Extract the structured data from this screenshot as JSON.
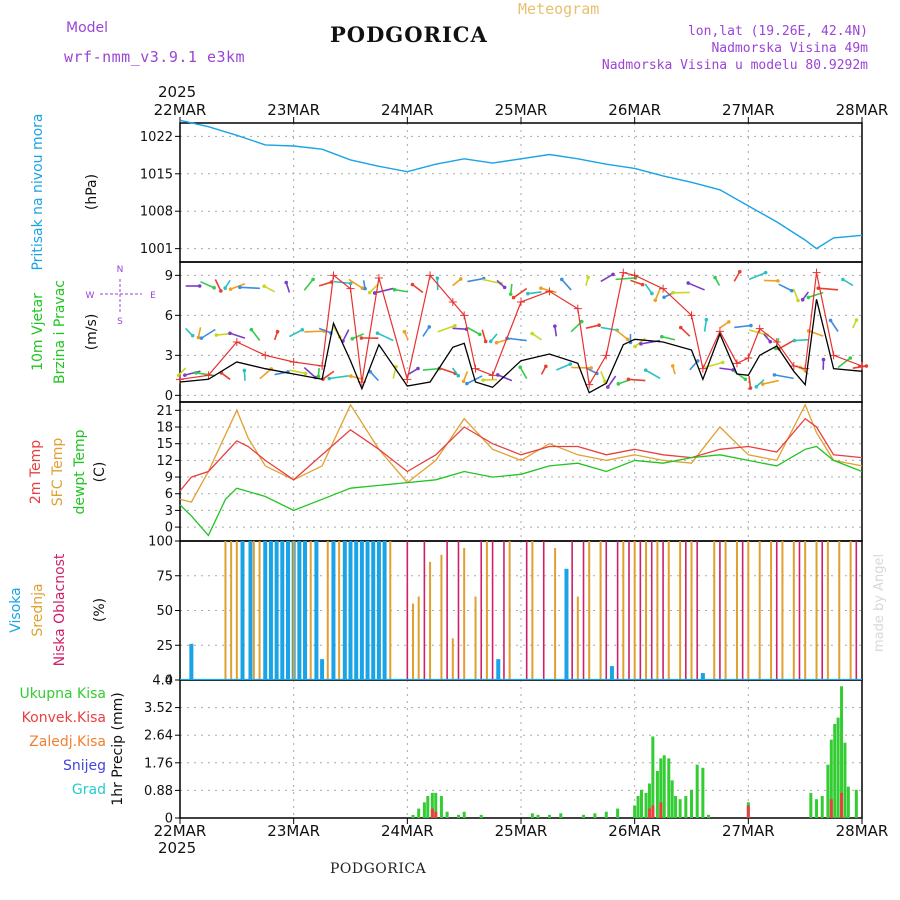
{
  "header": {
    "model_label": "Model",
    "model_name": "wrf-nmm_v3.9.1 e3km",
    "title": "PODGORICA",
    "meteogram_label": "Meteogram",
    "location_line": "lon,lat (19.26E, 42.4N)",
    "elevation_line": "Nadmorska Visina 49m",
    "model_elevation_line": "Nadmorska Visina u modelu 80.9292m",
    "year_top": "2025",
    "year_bottom": "2025",
    "footer_title": "PODGORICA",
    "credit": "made by Angel"
  },
  "colors": {
    "pressure": "#1aa3e6",
    "wind_speed": "#000000",
    "gust": "#e83030",
    "temp2m": "#e84040",
    "sfc_temp": "#e0a030",
    "dewpt": "#22c422",
    "high_cloud": "#1aa3e6",
    "mid_cloud": "#e0a030",
    "low_cloud": "#d0206a",
    "total_precip": "#33cc33",
    "conv_precip": "#e84040",
    "frozen_precip": "#f08030",
    "snow": "#4444dd",
    "hail": "#22cccc",
    "text_purple": "#9b44d6",
    "text_orange": "#e8c070"
  },
  "chart_data": [
    {
      "type": "line",
      "panel": "pressure",
      "title": "Pritisak na nivou mora",
      "ylabel": "(hPa)",
      "x": [
        0,
        0.5,
        1,
        1.5,
        2,
        2.5,
        3,
        3.5,
        4,
        4.5,
        5,
        5.5,
        6
      ],
      "categories": [
        "22MAR",
        "23MAR",
        "24MAR",
        "25MAR",
        "26MAR",
        "27MAR",
        "28MAR"
      ],
      "xlim": [
        0,
        6
      ],
      "ylim": [
        998.5,
        1024.5
      ],
      "yticks": [
        1001,
        1008,
        1015,
        1022
      ],
      "series": [
        {
          "name": "Pritisak",
          "x": [
            0,
            0.25,
            0.5,
            0.75,
            1,
            1.25,
            1.5,
            1.75,
            2,
            2.25,
            2.5,
            2.75,
            3,
            3.25,
            3.5,
            3.75,
            4,
            4.25,
            4.5,
            4.75,
            5,
            5.25,
            5.5,
            5.6,
            5.75,
            6
          ],
          "values": [
            1025,
            1023.8,
            1022.2,
            1020.4,
            1020.2,
            1019.6,
            1017.6,
            1016.4,
            1015.4,
            1016.8,
            1017.8,
            1017,
            1017.8,
            1018.6,
            1017.8,
            1016.8,
            1016,
            1014.6,
            1013.4,
            1012,
            1009,
            1006,
            1002.6,
            1001,
            1003,
            1003.5
          ]
        }
      ]
    },
    {
      "type": "line",
      "panel": "wind",
      "title": "10m Vjetar Brzina i Pravac",
      "ylabel": "(m/s)",
      "compass": [
        "N",
        "S",
        "W",
        "E"
      ],
      "xlim": [
        0,
        6
      ],
      "ylim": [
        -0.5,
        10
      ],
      "yticks": [
        0,
        3,
        6,
        9
      ],
      "series": [
        {
          "name": "Brzina vjetra",
          "x": [
            0,
            0.25,
            0.5,
            0.75,
            1,
            1.25,
            1.35,
            1.5,
            1.6,
            1.75,
            2,
            2.2,
            2.4,
            2.5,
            2.6,
            2.75,
            3,
            3.25,
            3.5,
            3.6,
            3.75,
            3.9,
            4,
            4.25,
            4.5,
            4.6,
            4.75,
            4.9,
            5,
            5.1,
            5.25,
            5.4,
            5.5,
            5.6,
            5.75,
            6
          ],
          "values": [
            1.0,
            1.2,
            2.5,
            2.0,
            1.6,
            1.2,
            5.4,
            2.6,
            0.5,
            3.8,
            0.7,
            1.0,
            3.6,
            3.9,
            1.0,
            0.6,
            2.6,
            3.1,
            2.4,
            0.2,
            0.9,
            3.8,
            4.2,
            4.0,
            3.4,
            1.2,
            4.6,
            1.6,
            1.5,
            3.0,
            3.7,
            1.8,
            0.8,
            7.2,
            2.0,
            1.8
          ]
        },
        {
          "name": "Udari vjetra",
          "x": [
            0,
            0.25,
            0.5,
            0.75,
            1,
            1.25,
            1.35,
            1.5,
            1.6,
            1.75,
            2,
            2.2,
            2.4,
            2.5,
            2.6,
            2.75,
            3,
            3.25,
            3.5,
            3.6,
            3.75,
            3.9,
            4,
            4.25,
            4.5,
            4.6,
            4.75,
            4.9,
            5,
            5.1,
            5.25,
            5.4,
            5.5,
            5.6,
            5.75,
            6
          ],
          "values": [
            1.2,
            1.5,
            4.0,
            3.0,
            2.5,
            2.2,
            9.0,
            8.0,
            1.0,
            8.8,
            1.2,
            9.0,
            7.0,
            6.0,
            2.0,
            1.5,
            7.0,
            7.8,
            6.5,
            0.8,
            3.0,
            9.2,
            9.0,
            8.0,
            6.0,
            2.0,
            4.8,
            2.4,
            2.8,
            5.0,
            4.0,
            2.2,
            2.0,
            9.2,
            3.0,
            2.2
          ]
        }
      ]
    },
    {
      "type": "line",
      "panel": "temperature",
      "title": "2m Temp / SFC Temp / dewpt Temp",
      "ylabel": "(C)",
      "xlim": [
        0,
        6
      ],
      "ylim": [
        -2.5,
        22.5
      ],
      "yticks": [
        0,
        3,
        6,
        9,
        12,
        15,
        18,
        21
      ],
      "series": [
        {
          "name": "2m Temp",
          "x": [
            0,
            0.1,
            0.25,
            0.5,
            0.6,
            0.75,
            1,
            1.25,
            1.5,
            1.75,
            2,
            2.25,
            2.5,
            2.75,
            3,
            3.25,
            3.5,
            3.75,
            4,
            4.25,
            4.5,
            4.75,
            5,
            5.25,
            5.5,
            5.6,
            5.75,
            6
          ],
          "values": [
            6.5,
            9,
            10,
            15.5,
            14.5,
            12,
            8.5,
            13,
            17.5,
            14,
            10,
            13,
            18,
            15,
            13,
            14.5,
            14.5,
            13,
            14,
            13,
            12.5,
            14,
            14.5,
            13.5,
            19.5,
            18,
            13,
            12.5
          ]
        },
        {
          "name": "SFC Temp",
          "x": [
            0,
            0.1,
            0.25,
            0.5,
            0.6,
            0.75,
            1,
            1.25,
            1.5,
            1.75,
            2,
            2.25,
            2.5,
            2.75,
            3,
            3.25,
            3.5,
            3.75,
            4,
            4.25,
            4.5,
            4.75,
            5,
            5.25,
            5.5,
            5.6,
            5.75,
            6
          ],
          "values": [
            5,
            4.5,
            10,
            21,
            16,
            11,
            8.5,
            11,
            22,
            14,
            8,
            12,
            19.5,
            14,
            12,
            15,
            13,
            12,
            13,
            12,
            11.5,
            18,
            13,
            12,
            22,
            17,
            12,
            11
          ]
        },
        {
          "name": "dewpt Temp",
          "x": [
            0,
            0.1,
            0.25,
            0.4,
            0.5,
            0.75,
            1,
            1.25,
            1.5,
            1.75,
            2,
            2.25,
            2.5,
            2.75,
            3,
            3.25,
            3.5,
            3.75,
            4,
            4.25,
            4.5,
            4.75,
            5,
            5.25,
            5.5,
            5.6,
            5.75,
            6
          ],
          "values": [
            4,
            2,
            -1.5,
            5,
            7,
            5.5,
            3,
            5,
            7,
            7.5,
            8,
            8.5,
            10,
            9,
            9.5,
            11,
            11.5,
            10,
            12,
            11.5,
            12.5,
            13,
            12,
            11,
            14,
            14.5,
            12,
            10
          ]
        }
      ]
    },
    {
      "type": "bar",
      "panel": "clouds",
      "title": "Visoka / Srednja / Niska Oblacnost",
      "ylabel": "(%)",
      "xlim": [
        0,
        6
      ],
      "ylim": [
        0,
        100
      ],
      "yticks": [
        0,
        25,
        50,
        75,
        100
      ],
      "series": [
        {
          "name": "Visoka Oblacnost",
          "x": [
            0.1,
            0.55,
            0.62,
            0.75,
            0.8,
            0.85,
            0.9,
            0.95,
            1.0,
            1.05,
            1.1,
            1.2,
            1.25,
            1.35,
            1.45,
            1.5,
            1.55,
            1.6,
            1.65,
            1.7,
            1.75,
            1.8,
            2.8,
            3.4,
            3.8,
            4.6
          ],
          "values": [
            26,
            100,
            100,
            100,
            100,
            100,
            100,
            100,
            100,
            100,
            100,
            100,
            15,
            100,
            100,
            100,
            100,
            100,
            100,
            100,
            100,
            100,
            15,
            80,
            10,
            5
          ]
        },
        {
          "name": "Srednja Oblacnost",
          "x": [
            0.4,
            0.45,
            0.5,
            0.65,
            0.7,
            1.0,
            1.15,
            1.3,
            1.4,
            1.85,
            2.05,
            2.1,
            2.2,
            2.3,
            2.4,
            2.5,
            2.6,
            2.7,
            2.9,
            3.1,
            3.3,
            3.5,
            3.6,
            3.7,
            3.9,
            4.0,
            4.1,
            4.2,
            4.3,
            4.4,
            4.5,
            4.7,
            4.8,
            4.9,
            5.0,
            5.1,
            5.2,
            5.3,
            5.4,
            5.5,
            5.6,
            5.7,
            5.8,
            5.9
          ],
          "values": [
            100,
            100,
            100,
            100,
            100,
            100,
            100,
            100,
            100,
            100,
            55,
            60,
            85,
            90,
            30,
            95,
            60,
            100,
            100,
            100,
            95,
            60,
            100,
            100,
            100,
            100,
            100,
            100,
            100,
            100,
            100,
            100,
            100,
            100,
            100,
            100,
            100,
            100,
            100,
            100,
            100,
            100,
            100,
            100
          ]
        },
        {
          "name": "Niska Oblacnost",
          "x": [
            2.0,
            2.15,
            2.35,
            2.45,
            2.65,
            2.75,
            2.85,
            3.05,
            3.2,
            3.45,
            3.55,
            3.75,
            3.85,
            3.95,
            4.05,
            4.15,
            4.25,
            4.45,
            4.55,
            4.75,
            4.95,
            5.25,
            5.45,
            5.65,
            5.95
          ],
          "values": [
            100,
            100,
            100,
            100,
            100,
            100,
            100,
            100,
            100,
            100,
            100,
            100,
            100,
            100,
            100,
            100,
            100,
            100,
            100,
            100,
            100,
            100,
            100,
            100,
            100
          ]
        }
      ]
    },
    {
      "type": "bar",
      "panel": "precipitation",
      "title": "1hr Precip",
      "ylabel": "1hr Precip (mm)",
      "legend": [
        "Ukupna Kisa",
        "Konvek.Kisa",
        "Zaledj.Kisa",
        "Snijeg",
        "Grad"
      ],
      "xlim": [
        0,
        6
      ],
      "ylim": [
        0,
        4.4
      ],
      "yticks": [
        0,
        0.88,
        1.76,
        2.64,
        3.52,
        4.4
      ],
      "series": [
        {
          "name": "Ukupna Kisa",
          "x": [
            2.05,
            2.1,
            2.15,
            2.18,
            2.22,
            2.25,
            2.3,
            2.35,
            2.45,
            2.5,
            2.65,
            3.1,
            3.15,
            3.25,
            3.35,
            3.55,
            3.65,
            3.75,
            3.85,
            4.0,
            4.03,
            4.06,
            4.1,
            4.13,
            4.16,
            4.2,
            4.23,
            4.26,
            4.3,
            4.33,
            4.36,
            4.4,
            4.45,
            4.5,
            4.55,
            4.6,
            4.65,
            5.0,
            5.55,
            5.6,
            5.65,
            5.7,
            5.73,
            5.76,
            5.79,
            5.82,
            5.85,
            5.88,
            5.95
          ],
          "values": [
            0.1,
            0.3,
            0.5,
            0.7,
            0.8,
            0.8,
            0.7,
            0.2,
            0.1,
            0.2,
            0.1,
            0.15,
            0.1,
            0.1,
            0.15,
            0.1,
            0.15,
            0.2,
            0.3,
            0.4,
            0.7,
            0.9,
            0.8,
            1.1,
            2.6,
            1.5,
            1.9,
            2.0,
            1.9,
            1.2,
            0.7,
            0.6,
            0.7,
            0.9,
            1.7,
            1.6,
            0.1,
            0.5,
            0.8,
            0.6,
            0.7,
            1.7,
            2.5,
            3.0,
            3.2,
            4.2,
            2.4,
            1.0,
            0.9
          ]
        },
        {
          "name": "Konvek.Kisa",
          "x": [
            2.22,
            2.25,
            4.13,
            4.16,
            4.23,
            5.0,
            5.73,
            5.82
          ],
          "values": [
            0.3,
            0.2,
            0.3,
            0.4,
            0.5,
            0.4,
            0.6,
            0.8
          ]
        }
      ]
    }
  ]
}
